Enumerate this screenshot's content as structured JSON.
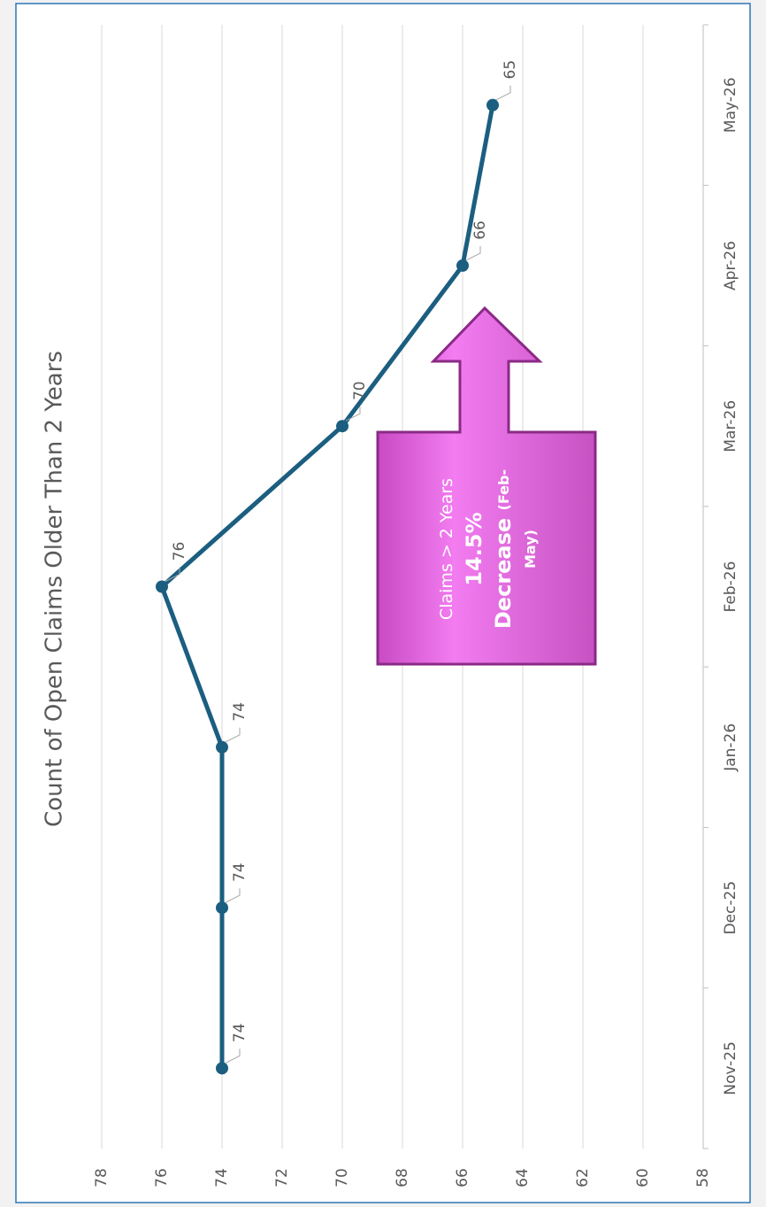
{
  "chart_data": {
    "type": "line",
    "title": "Count of Open Claims Older Than 2 Years",
    "categories": [
      "Nov-25",
      "Dec-25",
      "Jan-26",
      "Feb-26",
      "Mar-26",
      "Apr-26",
      "May-26"
    ],
    "values": [
      74,
      74,
      74,
      76,
      70,
      66,
      65
    ],
    "color": "#1b5e80",
    "ylim": [
      58,
      78
    ],
    "yticks": [
      58,
      60,
      62,
      64,
      66,
      68,
      70,
      72,
      74,
      76,
      78
    ],
    "grid": true,
    "annotation": [
      "Claims > 2 Years",
      "14.5%",
      "Decrease",
      "(Feb-",
      "May)"
    ]
  }
}
